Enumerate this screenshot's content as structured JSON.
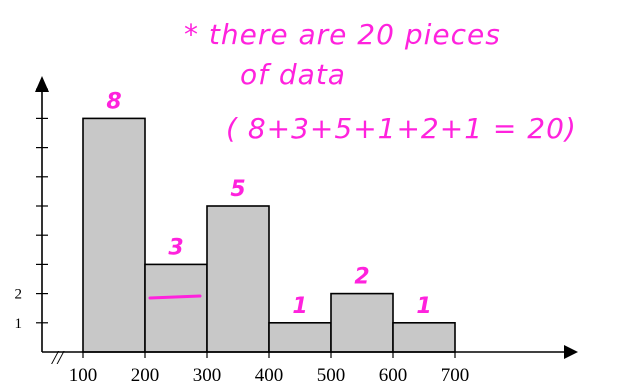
{
  "chart_data": {
    "type": "bar",
    "categories": [
      "100-200",
      "200-300",
      "300-400",
      "400-500",
      "500-600",
      "600-700"
    ],
    "values": [
      8,
      3,
      5,
      1,
      2,
      1
    ],
    "data_labels": [
      "8",
      "3",
      "5",
      "1",
      "2",
      "1"
    ],
    "x_tick_labels": [
      "100",
      "200",
      "300",
      "400",
      "500",
      "600",
      "700"
    ],
    "y_tick_labels": [
      "1",
      "2"
    ],
    "y_max_tick": 9,
    "xlim": [
      100,
      700
    ],
    "ylim": [
      0,
      9
    ],
    "grid": false,
    "legend": "none",
    "axis_break_mark": "//",
    "colors": {
      "bar_fill": "#c8c8c8",
      "bar_stroke": "#000000",
      "annotation": "#ff22dd"
    },
    "annotations": [
      "* there are 20 pieces",
      "of data",
      "( 8+3+5+1+2+1 = 20)"
    ]
  }
}
